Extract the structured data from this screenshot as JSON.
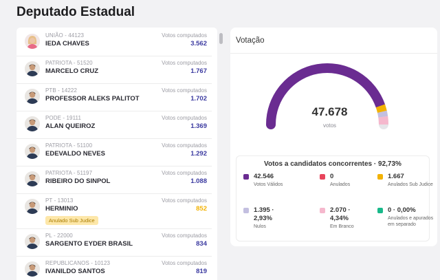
{
  "page_title": "Deputado Estadual",
  "candidates": [
    {
      "meta": "UNIÃO - 44123",
      "name": "IEDA CHAVES",
      "votes_label": "Votos computados",
      "votes": "3.562",
      "badge": null,
      "avatar": "female-avatar"
    },
    {
      "meta": "PATRIOTA - 51520",
      "name": "MARCELO CRUZ",
      "votes_label": "Votos computados",
      "votes": "1.767",
      "badge": null,
      "avatar": "male-avatar"
    },
    {
      "meta": "PTB - 14222",
      "name": "PROFESSOR ALEKS PALITOT",
      "votes_label": "Votos computados",
      "votes": "1.702",
      "badge": null,
      "avatar": "male-avatar"
    },
    {
      "meta": "PODE - 19111",
      "name": "ALAN QUEIROZ",
      "votes_label": "Votos computados",
      "votes": "1.369",
      "badge": null,
      "avatar": "male-avatar"
    },
    {
      "meta": "PATRIOTA - 51100",
      "name": "EDEVALDO NEVES",
      "votes_label": "Votos computados",
      "votes": "1.292",
      "badge": null,
      "avatar": "male-avatar"
    },
    {
      "meta": "PATRIOTA - 51197",
      "name": "RIBEIRO DO SINPOL",
      "votes_label": "Votos computados",
      "votes": "1.088",
      "badge": null,
      "avatar": "male-avatar"
    },
    {
      "meta": "PT - 13013",
      "name": "HERMINIO",
      "votes_label": "Votos computados",
      "votes": "852",
      "badge": "Anulado Sub Judice",
      "avatar": "male-avatar"
    },
    {
      "meta": "PL - 22000",
      "name": "SARGENTO EYDER BRASIL",
      "votes_label": "Votos computados",
      "votes": "834",
      "badge": null,
      "avatar": "male-avatar"
    },
    {
      "meta": "REPUBLICANOS - 10123",
      "name": "IVANILDO SANTOS",
      "votes_label": "Votos computados",
      "votes": "819",
      "badge": null,
      "avatar": "male-avatar"
    }
  ],
  "votacao": {
    "title": "Votação",
    "total": "47.678",
    "total_unit": "votos",
    "gauge_shares": [
      {
        "label": "Votos Válidos",
        "value": 42546,
        "color": "#6a2c91"
      },
      {
        "label": "Anulados",
        "value": 0,
        "color": "#e8455c"
      },
      {
        "label": "Anulados Sub Judice",
        "value": 1667,
        "color": "#f2b203"
      },
      {
        "label": "Nulos",
        "value": 1395,
        "color": "#c3bfe0"
      },
      {
        "label": "Em Branco",
        "value": 2070,
        "color": "#f5b8cd"
      },
      {
        "label": "Anulados e apurados em separado",
        "value": 0,
        "color": "#19b98a"
      }
    ],
    "track_color": "#e5e5e9",
    "stats_title": "Votos a candidatos concorrentes · 92,73%",
    "stats": [
      {
        "value": "42.546",
        "label": "Votos Válidos",
        "color": "#6a2c91"
      },
      {
        "value": "0",
        "label": "Anulados",
        "color": "#e8455c"
      },
      {
        "value": "1.667",
        "label": "Anulados Sub Judice",
        "color": "#f2b203"
      },
      {
        "value": "1.395 ·\n2,93%",
        "label": "Nulos",
        "color": "#c3bfe0"
      },
      {
        "value": "2.070 ·\n4,34%",
        "label": "Em Branco",
        "color": "#f5b8cd"
      },
      {
        "value": "0 · 0,00%",
        "label": "Anulados e apurados em separado",
        "color": "#19b98a"
      }
    ]
  }
}
